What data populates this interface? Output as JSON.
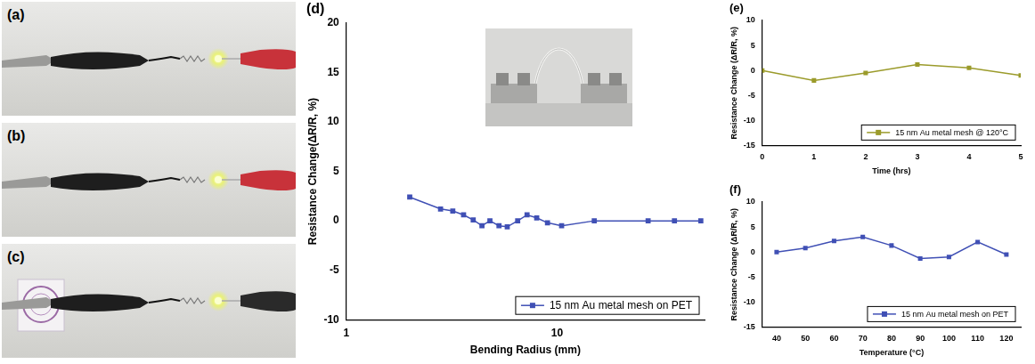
{
  "photo_panels": [
    "(a)",
    "(b)",
    "(c)"
  ],
  "chart_data": [
    {
      "type": "line",
      "panel_label": "(d)",
      "x_label": "Bending Radius (mm)",
      "y_label": "Resistance Change(ΔR/R, %)",
      "log": "x",
      "grid": false,
      "legend": "lower right",
      "xlim": [
        1,
        50
      ],
      "xticks": [
        1,
        10
      ],
      "ylim": [
        -10,
        20
      ],
      "yticks": [
        -10,
        -5,
        0,
        5,
        10,
        15,
        20
      ],
      "x": [
        2.0,
        2.8,
        3.2,
        3.6,
        4.0,
        4.4,
        4.8,
        5.3,
        5.8,
        6.5,
        7.2,
        8.0,
        9.0,
        10.5,
        15,
        27,
        36,
        48
      ],
      "series": [
        {
          "name": "15 nm Au metal mesh on PET",
          "color": "#4050b5",
          "marker": "square",
          "line_style": "solid",
          "values": [
            2.4,
            1.2,
            1.0,
            0.6,
            0.1,
            -0.5,
            0.0,
            -0.5,
            -0.6,
            0.0,
            0.6,
            0.3,
            -0.2,
            -0.5,
            0.0,
            0.0,
            0.0,
            0.0
          ]
        }
      ]
    },
    {
      "type": "line",
      "panel_label": "(e)",
      "x_label": "Time (hrs)",
      "y_label": "Resistance Change (ΔR/R, %)",
      "grid": false,
      "legend": "lower right",
      "xlim": [
        0,
        5
      ],
      "xticks": [
        0,
        1,
        2,
        3,
        4,
        5
      ],
      "ylim": [
        -15,
        10
      ],
      "yticks": [
        -15,
        -10,
        -5,
        0,
        5,
        10
      ],
      "x": [
        0,
        1,
        2,
        3,
        4,
        5
      ],
      "series": [
        {
          "name": "15 nm Au metal mesh @ 120°C",
          "color": "#9b9b2b",
          "marker": "square",
          "line_style": "solid",
          "values": [
            0.0,
            -2.0,
            -0.5,
            1.2,
            0.5,
            -1.0
          ]
        }
      ]
    },
    {
      "type": "line",
      "panel_label": "(f)",
      "x_label": "Temperature (°C)",
      "y_label": "Resistance Change (ΔR/R, %)",
      "grid": false,
      "legend": "lower right",
      "xlim": [
        35,
        125
      ],
      "xticks": [
        40,
        50,
        60,
        70,
        80,
        90,
        100,
        110,
        120
      ],
      "ylim": [
        -15,
        10
      ],
      "yticks": [
        -15,
        -10,
        -5,
        0,
        5,
        10
      ],
      "x": [
        40,
        50,
        60,
        70,
        80,
        90,
        100,
        110,
        120
      ],
      "series": [
        {
          "name": "15 nm Au metal mesh on PET",
          "color": "#4050b5",
          "marker": "square",
          "line_style": "solid",
          "values": [
            0.0,
            0.8,
            2.2,
            3.0,
            1.3,
            -1.3,
            -1.0,
            2.0,
            -0.5
          ]
        }
      ]
    }
  ]
}
